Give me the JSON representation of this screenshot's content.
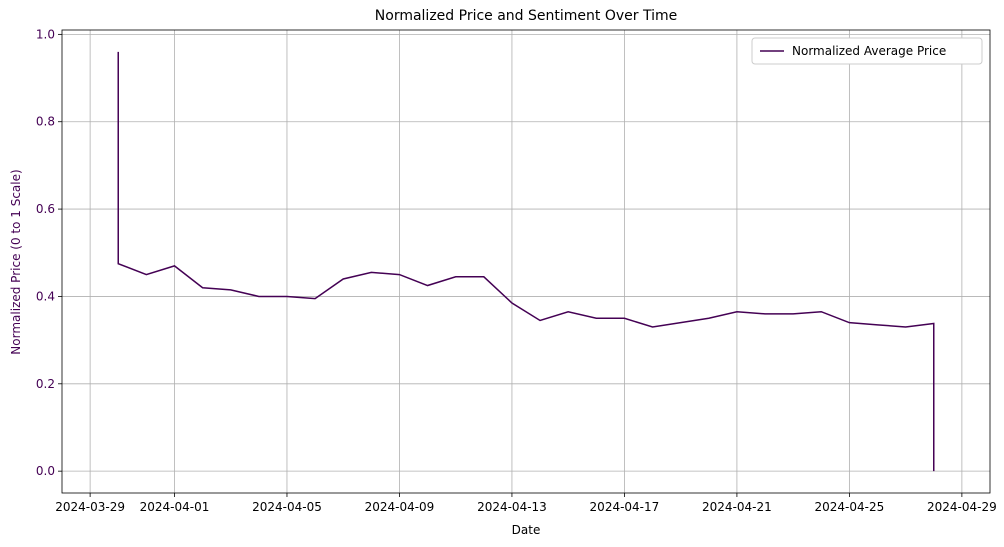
{
  "chart_data": {
    "type": "line",
    "title": "Normalized Price and Sentiment Over Time",
    "xlabel": "Date",
    "ylabel": "Normalized Price (0 to 1 Scale)",
    "x": [
      "2024-03-30",
      "2024-03-30",
      "2024-03-31",
      "2024-04-01",
      "2024-04-02",
      "2024-04-03",
      "2024-04-04",
      "2024-04-05",
      "2024-04-06",
      "2024-04-07",
      "2024-04-08",
      "2024-04-09",
      "2024-04-10",
      "2024-04-11",
      "2024-04-12",
      "2024-04-13",
      "2024-04-14",
      "2024-04-15",
      "2024-04-16",
      "2024-04-17",
      "2024-04-18",
      "2024-04-19",
      "2024-04-20",
      "2024-04-21",
      "2024-04-22",
      "2024-04-23",
      "2024-04-24",
      "2024-04-25",
      "2024-04-26",
      "2024-04-27",
      "2024-04-28",
      "2024-04-28"
    ],
    "series": [
      {
        "name": "Normalized Average Price",
        "color": "#440154",
        "values": [
          0.96,
          0.475,
          0.45,
          0.47,
          0.42,
          0.415,
          0.4,
          0.4,
          0.395,
          0.44,
          0.455,
          0.45,
          0.425,
          0.445,
          0.445,
          0.385,
          0.345,
          0.365,
          0.35,
          0.35,
          0.33,
          0.34,
          0.35,
          0.365,
          0.36,
          0.36,
          0.365,
          0.34,
          0.335,
          0.33,
          0.338,
          0
        ]
      }
    ],
    "xlim": [
      "2024-03-28",
      "2024-04-30"
    ],
    "xticks": [
      "2024-03-29",
      "2024-04-01",
      "2024-04-05",
      "2024-04-09",
      "2024-04-13",
      "2024-04-17",
      "2024-04-21",
      "2024-04-25",
      "2024-04-29"
    ],
    "ylim": [
      -0.05,
      1.01
    ],
    "yticks": [
      {
        "value": 0,
        "label": "0.0"
      },
      {
        "value": 0.2,
        "label": "0.2"
      },
      {
        "value": 0.4,
        "label": "0.4"
      },
      {
        "value": 0.6,
        "label": "0.6"
      },
      {
        "value": 0.8,
        "label": "0.8"
      },
      {
        "value": 1,
        "label": "1.0"
      }
    ],
    "grid": true,
    "legend": "upper-right",
    "ylabel_color": "#440154"
  }
}
